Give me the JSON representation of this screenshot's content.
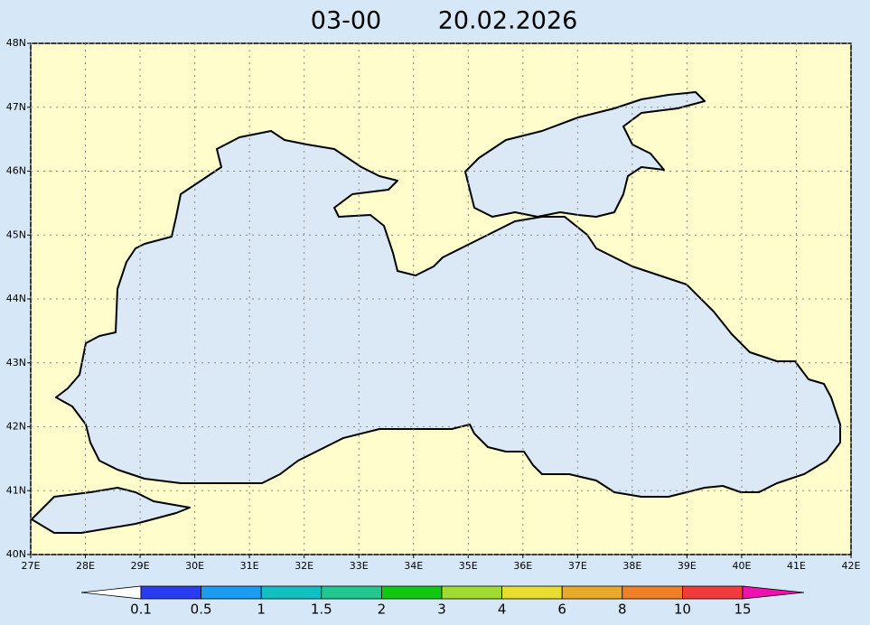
{
  "map": {
    "title_time": "03-00",
    "title_date": "20.02.2026",
    "xlim": [
      27,
      42
    ],
    "ylim": [
      40,
      48
    ],
    "xticks": [
      {
        "value": 27,
        "label": "27E"
      },
      {
        "value": 28,
        "label": "28E"
      },
      {
        "value": 29,
        "label": "29E"
      },
      {
        "value": 30,
        "label": "30E"
      },
      {
        "value": 31,
        "label": "31E"
      },
      {
        "value": 32,
        "label": "32E"
      },
      {
        "value": 33,
        "label": "33E"
      },
      {
        "value": 34,
        "label": "34E"
      },
      {
        "value": 35,
        "label": "35E"
      },
      {
        "value": 36,
        "label": "36E"
      },
      {
        "value": 37,
        "label": "37E"
      },
      {
        "value": 38,
        "label": "38E"
      },
      {
        "value": 39,
        "label": "39E"
      },
      {
        "value": 40,
        "label": "40E"
      },
      {
        "value": 41,
        "label": "41E"
      },
      {
        "value": 42,
        "label": "42E"
      }
    ],
    "yticks": [
      {
        "value": 40,
        "label": "40N"
      },
      {
        "value": 41,
        "label": "41N"
      },
      {
        "value": 42,
        "label": "42N"
      },
      {
        "value": 43,
        "label": "43N"
      },
      {
        "value": 44,
        "label": "44N"
      },
      {
        "value": 45,
        "label": "45N"
      },
      {
        "value": 46,
        "label": "46N"
      },
      {
        "value": 47,
        "label": "47N"
      },
      {
        "value": 48,
        "label": "48N"
      }
    ],
    "grid": true,
    "colorbar": {
      "levels": [
        0.1,
        0.5,
        1,
        1.5,
        2,
        3,
        4,
        6,
        8,
        10,
        15
      ],
      "colors": [
        "#ffffff",
        "#2a3cf0",
        "#1a9cf0",
        "#10c0c0",
        "#20c890",
        "#10c810",
        "#a0dc30",
        "#e8dc30",
        "#e8a828",
        "#f08028",
        "#f03c3c",
        "#f010b0"
      ]
    }
  }
}
